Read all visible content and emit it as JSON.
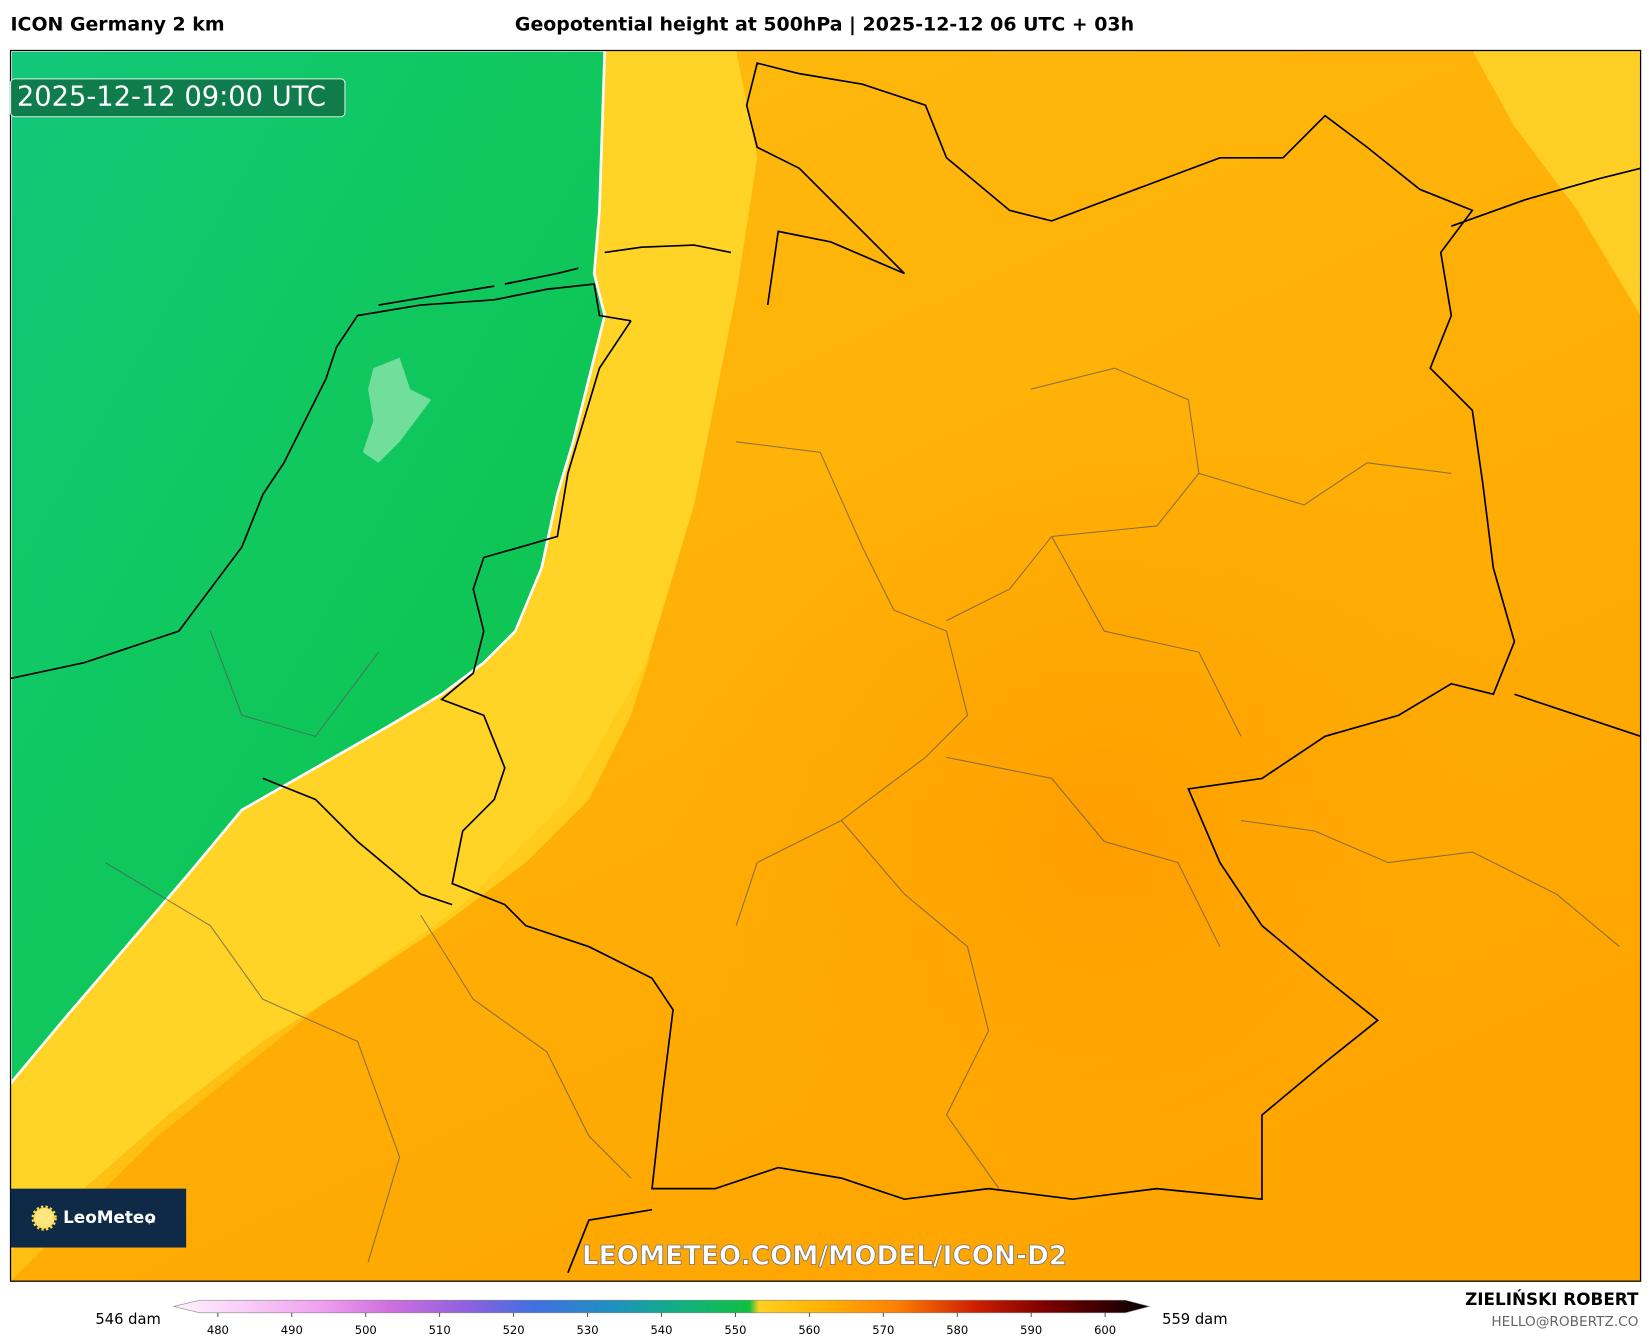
{
  "header": {
    "model": "ICON Germany 2 km",
    "title": "Geopotential height at 500hPa | 2025-12-12 06 UTC + 03h"
  },
  "map": {
    "valid_time": "2025-12-12 09:00 UTC",
    "logo": "LeoMeteo",
    "logo_suffix": "pl",
    "watermark": "LEOMETEO.COM/MODEL/ICON-D2"
  },
  "colorbar": {
    "lim": [
      474,
      606
    ],
    "ticks": [
      480,
      490,
      500,
      510,
      520,
      530,
      540,
      550,
      560,
      570,
      580,
      590,
      600
    ],
    "min_label": "546 dam",
    "max_label": "559 dam"
  },
  "credits": {
    "author": "ZIELIŃSKI ROBERT",
    "contact": "HELLO@ROBERTZ.CO"
  }
}
